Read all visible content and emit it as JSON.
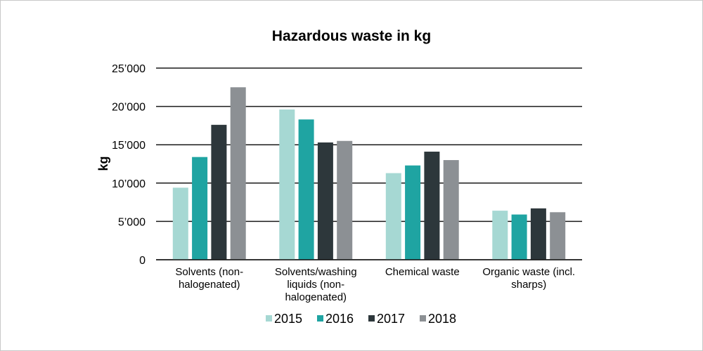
{
  "chart_data": {
    "type": "bar",
    "title": "Hazardous waste in kg",
    "xlabel": "",
    "ylabel": "kg",
    "ylim": [
      0,
      25000
    ],
    "yticks": [
      0,
      5000,
      10000,
      15000,
      20000,
      25000
    ],
    "ytick_labels": [
      "0",
      "5’000",
      "10’000",
      "15’000",
      "20’000",
      "25’000"
    ],
    "grid": true,
    "legend_position": "bottom",
    "categories": [
      [
        "Solvents (non-",
        "halogenated)"
      ],
      [
        "Solvents/washing",
        "liquids (non-",
        "halogenated)"
      ],
      [
        "Chemical waste"
      ],
      [
        "Organic waste (incl.",
        "sharps)"
      ]
    ],
    "series": [
      {
        "name": "2015",
        "color": "#a6d8d3",
        "values": [
          9400,
          19600,
          11300,
          6400
        ]
      },
      {
        "name": "2016",
        "color": "#1fa4a2",
        "values": [
          13400,
          18300,
          12300,
          5900
        ]
      },
      {
        "name": "2017",
        "color": "#2d373b",
        "values": [
          17600,
          15300,
          14100,
          6700
        ]
      },
      {
        "name": "2018",
        "color": "#8c9094",
        "values": [
          22500,
          15500,
          13000,
          6200
        ]
      }
    ]
  }
}
